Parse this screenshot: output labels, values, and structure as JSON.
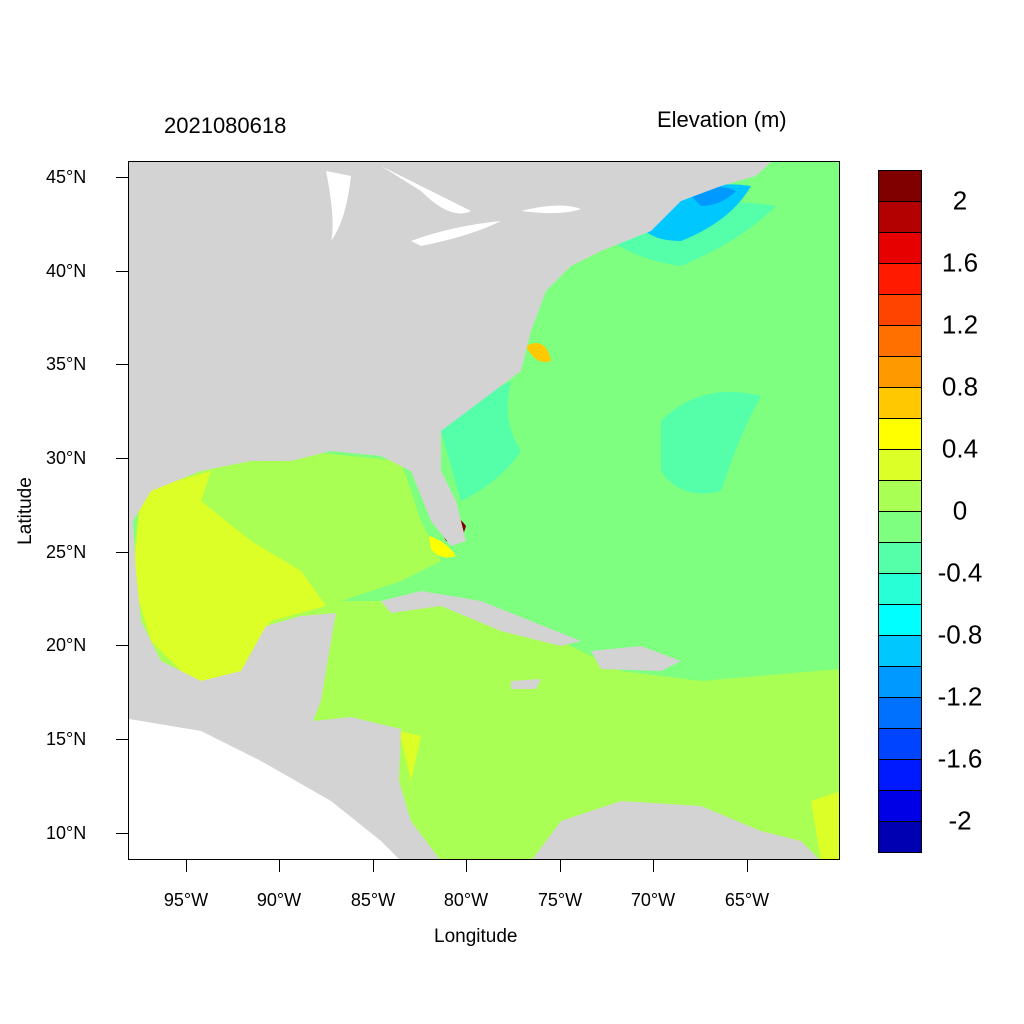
{
  "title_left": "2021080618",
  "title_right": "Elevation (m)",
  "xlabel": "Longitude",
  "ylabel": "Latitude",
  "x_ticks": [
    "95°W",
    "90°W",
    "85°W",
    "80°W",
    "75°W",
    "70°W",
    "65°W"
  ],
  "y_ticks": [
    "45°N",
    "40°N",
    "35°N",
    "30°N",
    "25°N",
    "20°N",
    "15°N",
    "10°N"
  ],
  "map": {
    "type": "filled contour",
    "extent": {
      "lon": [
        -98.1,
        -60.0
      ],
      "lat": [
        8.5,
        45.9
      ]
    },
    "land_color": "#d3d3d3",
    "missing_color": "#ffffff"
  },
  "colorbar": {
    "labels": [
      "2",
      "1.6",
      "1.2",
      "0.8",
      "0.4",
      "0",
      "-0.4",
      "-0.8",
      "-1.2",
      "-1.6",
      "-2"
    ],
    "levels_range": [
      -2.2,
      2.2
    ],
    "step": 0.2,
    "colors": [
      "#800000",
      "#b30000",
      "#e60000",
      "#ff1a00",
      "#ff4400",
      "#ff7000",
      "#ff9900",
      "#ffc800",
      "#ffff00",
      "#dcff28",
      "#aaff55",
      "#7fff7f",
      "#55ffaa",
      "#28ffd7",
      "#00ffff",
      "#00c8ff",
      "#0099ff",
      "#0070ff",
      "#0044ff",
      "#001aff",
      "#0000e6",
      "#0000b3"
    ]
  }
}
